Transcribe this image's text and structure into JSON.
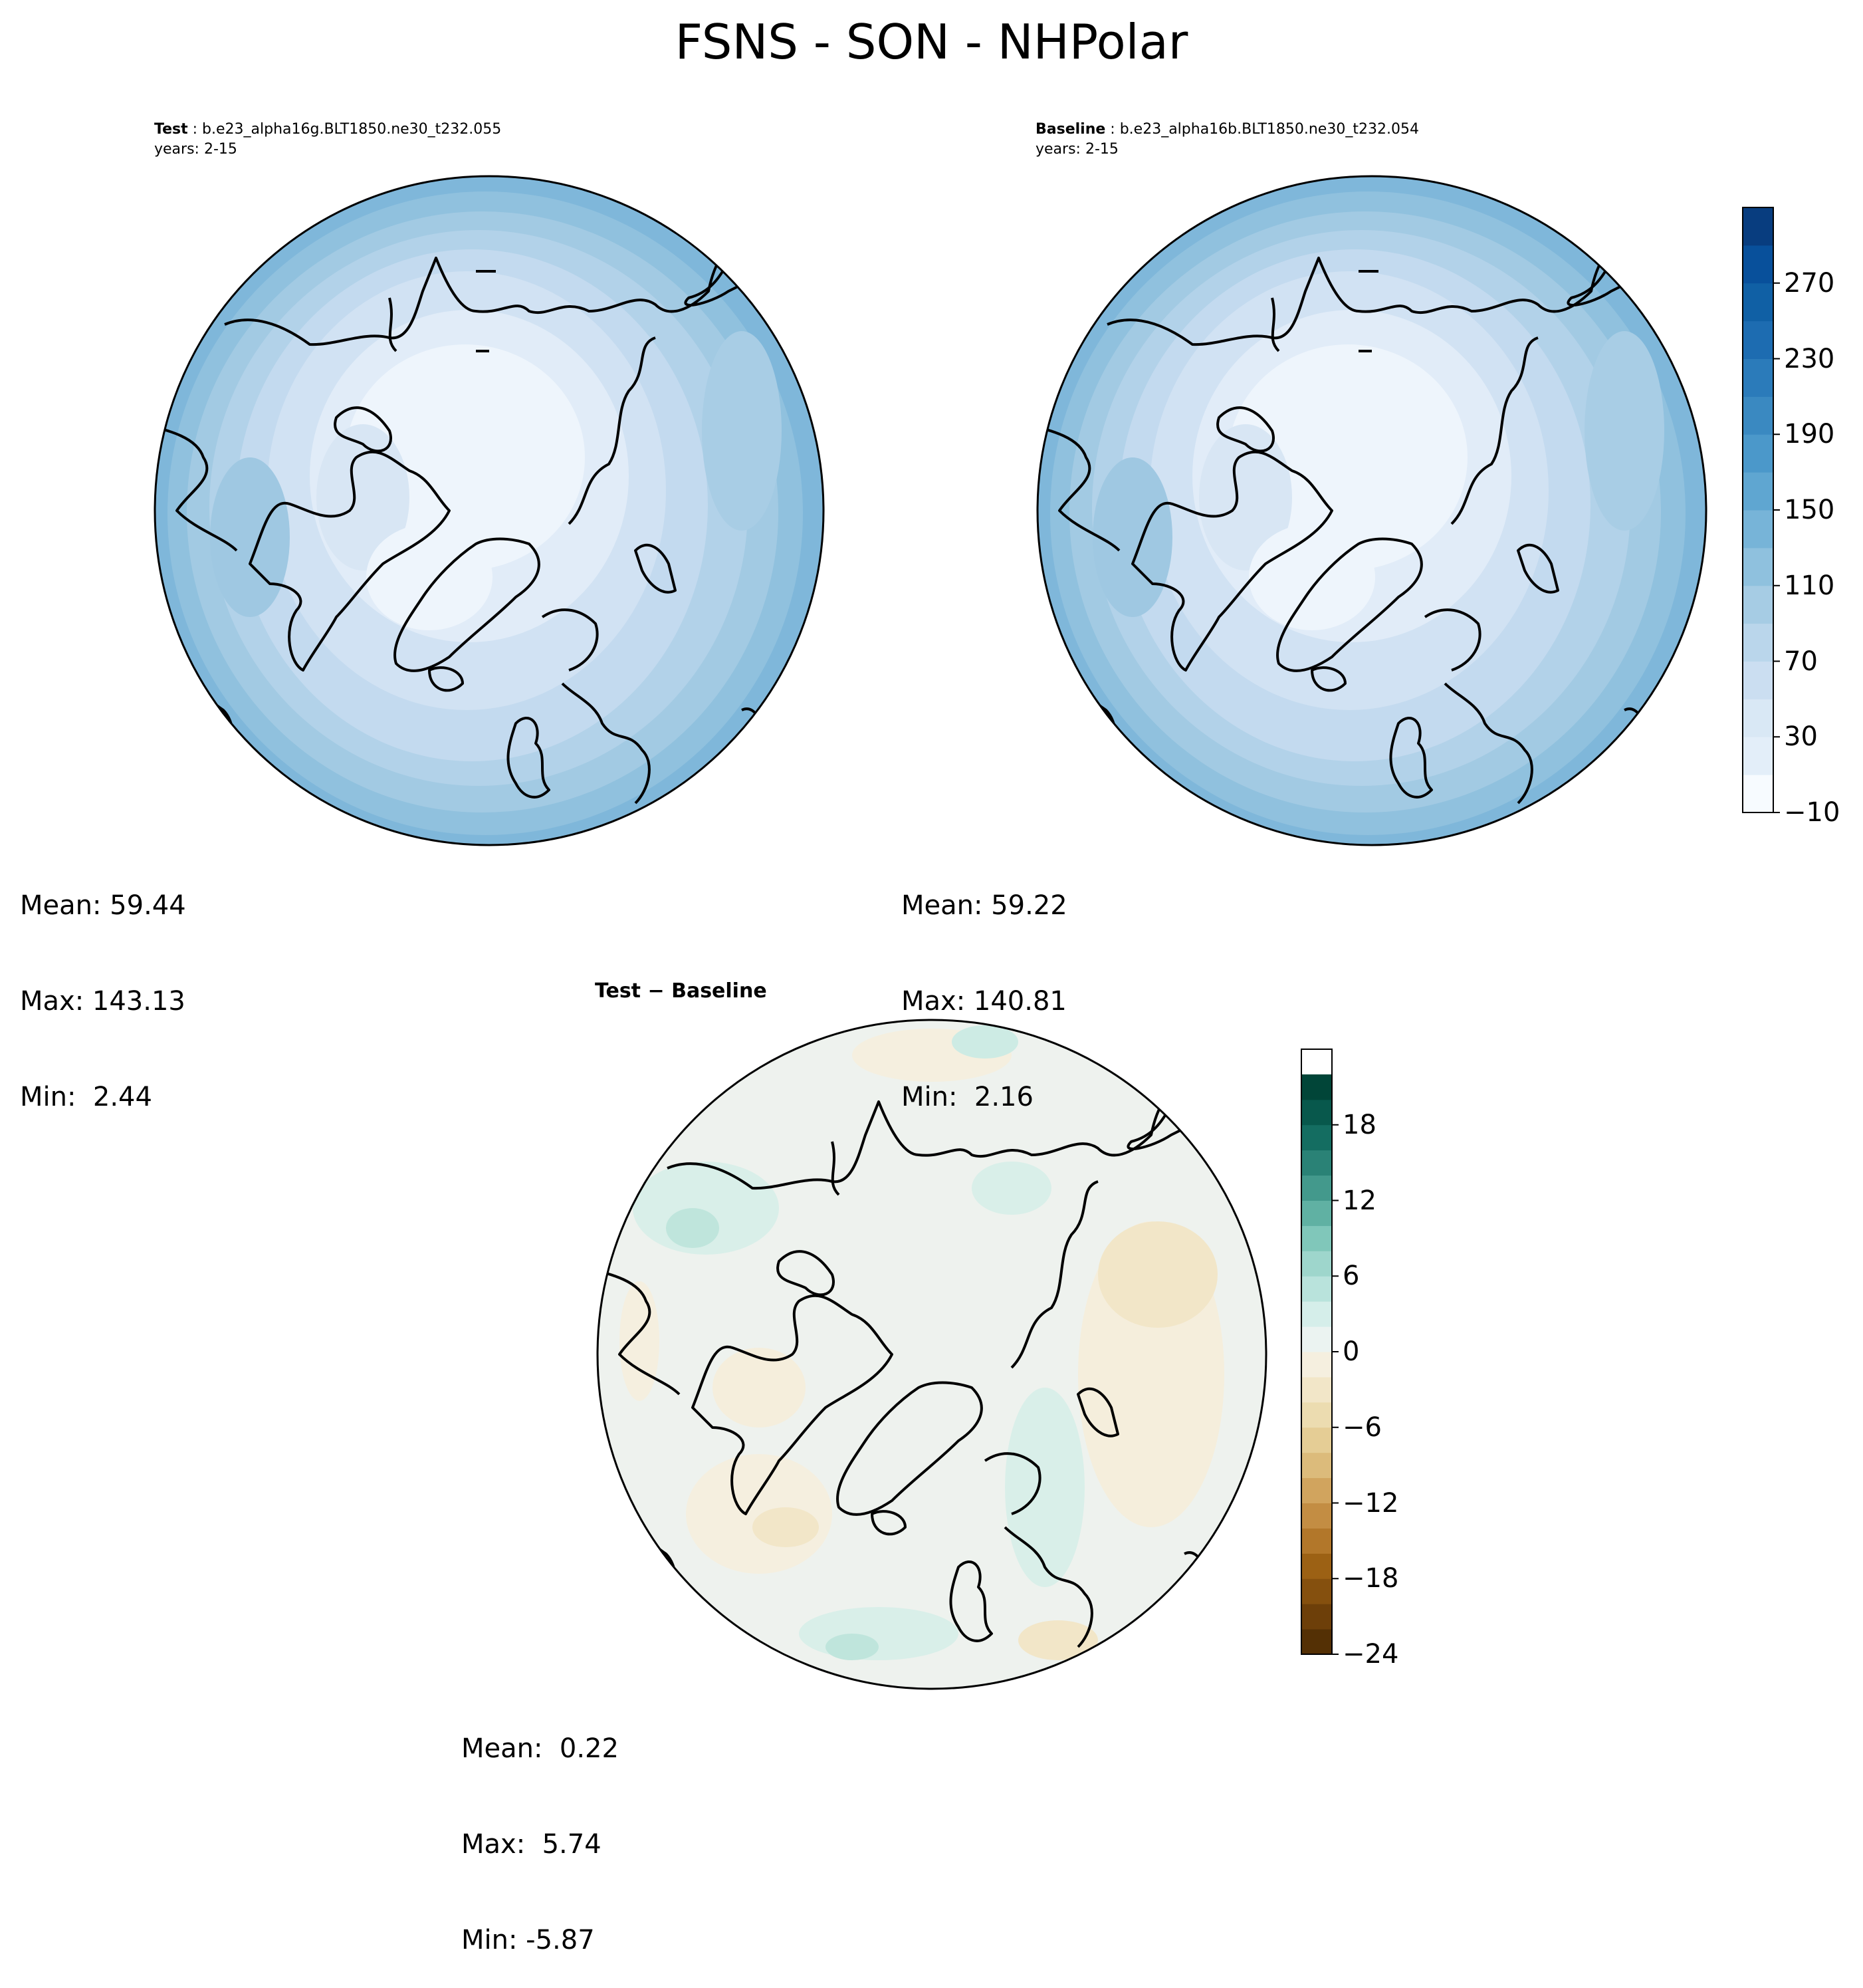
{
  "figure": {
    "title": "FSNS - SON - NHPolar"
  },
  "panels": {
    "test": {
      "label": "Test",
      "case": "b.e23_alpha16g.BLT1850.ne30_t232.055",
      "years": "years: 2-15",
      "stats": {
        "mean": "Mean: 59.44",
        "max": "Max: 143.13",
        "min": "Min:  2.44"
      }
    },
    "baseline": {
      "label": "Baseline",
      "case": "b.e23_alpha16b.BLT1850.ne30_t232.054",
      "years": "years: 2-15",
      "stats": {
        "mean": "Mean: 59.22",
        "max": "Max: 140.81",
        "min": "Min:  2.16"
      }
    },
    "diff": {
      "title_a": "Test",
      "title_op": "−",
      "title_b": "Baseline",
      "stats": {
        "mean": "Mean:  0.22",
        "max": "Max:  5.74",
        "min": "Min: -5.87"
      }
    }
  },
  "colorbars": {
    "main": {
      "levels": [
        -10,
        10,
        30,
        50,
        70,
        90,
        110,
        130,
        150,
        170,
        190,
        210,
        230,
        250,
        270,
        290
      ],
      "tick_values": [
        -10,
        30,
        70,
        110,
        150,
        190,
        230,
        270
      ],
      "tick_labels": [
        "−10",
        "30",
        "70",
        "110",
        "150",
        "190",
        "230",
        "270"
      ],
      "colors": [
        "#f7fbff",
        "#e3eef9",
        "#d9e8f5",
        "#cbdef1",
        "#bad6eb",
        "#a6cce4",
        "#8fc1de",
        "#77b4d8",
        "#5fa6d1",
        "#4b98ca",
        "#3a89c1",
        "#2b7bba",
        "#1d6cb1",
        "#1060a5",
        "#08509b",
        "#083d7f"
      ]
    },
    "diff": {
      "levels": [
        -24,
        -22,
        -20,
        -18,
        -16,
        -14,
        -12,
        -10,
        -8,
        -6,
        -4,
        -2,
        0,
        2,
        4,
        6,
        8,
        10,
        12,
        14,
        16,
        18,
        20,
        22
      ],
      "tick_values": [
        -24,
        -18,
        -12,
        -6,
        0,
        6,
        12,
        18
      ],
      "tick_labels": [
        "−24",
        "−18",
        "−12",
        "−6",
        "0",
        "6",
        "12",
        "18"
      ],
      "colors": [
        "#543005",
        "#6d3f09",
        "#85500e",
        "#9c6114",
        "#b2772a",
        "#c38d43",
        "#d1a45e",
        "#dcbb7b",
        "#e5cd95",
        "#ecdcb0",
        "#f2e6c8",
        "#f5efdf",
        "#ebf3f1",
        "#d5eeea",
        "#b9e3dc",
        "#9ed6cc",
        "#80c7ba",
        "#60b1a3",
        "#43998c",
        "#2a8276",
        "#146d61",
        "#08584c",
        "#014538"
      ]
    }
  },
  "chart_data": {
    "type": "heatmap",
    "variable": "FSNS",
    "season": "SON",
    "region": "NHPolar",
    "panels": [
      {
        "name": "Test",
        "mean": 59.44,
        "max": 143.13,
        "min": 2.44,
        "colorbar_range": [
          -10,
          290
        ]
      },
      {
        "name": "Baseline",
        "mean": 59.22,
        "max": 140.81,
        "min": 2.16,
        "colorbar_range": [
          -10,
          290
        ]
      },
      {
        "name": "Test − Baseline",
        "mean": 0.22,
        "max": 5.74,
        "min": -5.87,
        "colorbar_range": [
          -24,
          22
        ]
      }
    ]
  }
}
